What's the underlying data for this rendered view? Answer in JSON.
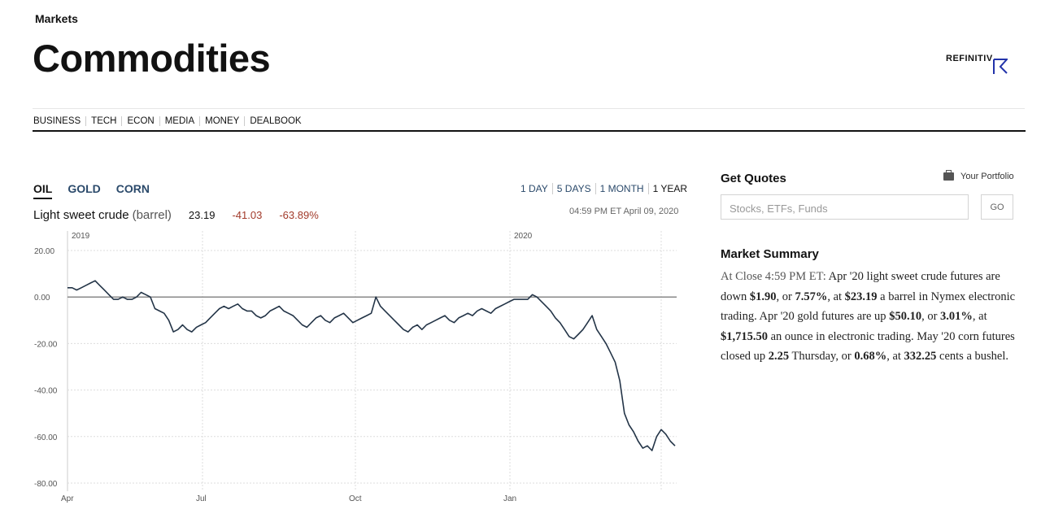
{
  "header": {
    "section": "Markets",
    "title": "Commodities",
    "brand": "REFINITIV"
  },
  "nav": [
    "BUSINESS",
    "TECH",
    "ECON",
    "MEDIA",
    "MONEY",
    "DEALBOOK"
  ],
  "commodity_tabs": [
    {
      "label": "OIL",
      "active": true
    },
    {
      "label": "GOLD",
      "active": false
    },
    {
      "label": "CORN",
      "active": false
    }
  ],
  "time_ranges": [
    {
      "label": "1 DAY",
      "active": false
    },
    {
      "label": "5 DAYS",
      "active": false
    },
    {
      "label": "1 MONTH",
      "active": false
    },
    {
      "label": "1 YEAR",
      "active": true
    }
  ],
  "quote": {
    "name": "Light sweet crude",
    "unit": "(barrel)",
    "price": "23.19",
    "change": "-41.03",
    "change_pct": "-63.89%",
    "timestamp": "04:59 PM ET April 09, 2020"
  },
  "chart_data": {
    "type": "line",
    "year_labels": [
      "2019",
      "2020"
    ],
    "x_ticks": [
      "Apr",
      "Jul",
      "Oct",
      "Jan"
    ],
    "y_ticks": [
      "20.00",
      "0.00",
      "-20.00",
      "-40.00",
      "-60.00",
      "-80.00"
    ],
    "ylim": [
      -80,
      20
    ],
    "baseline": 0,
    "series": [
      {
        "values": [
          4,
          4,
          3,
          4,
          5,
          6,
          7,
          5,
          3,
          1,
          -1,
          -1,
          0,
          -1,
          -1,
          0,
          2,
          1,
          0,
          -5,
          -6,
          -7,
          -10,
          -15,
          -14,
          -12,
          -14,
          -15,
          -13,
          -12,
          -11,
          -9,
          -7,
          -5,
          -4,
          -5,
          -4,
          -3,
          -5,
          -6,
          -6,
          -8,
          -9,
          -8,
          -6,
          -5,
          -4,
          -6,
          -7,
          -8,
          -10,
          -12,
          -13,
          -11,
          -9,
          -8,
          -10,
          -11,
          -9,
          -8,
          -7,
          -9,
          -11,
          -10,
          -9,
          -8,
          -7,
          0,
          -4,
          -6,
          -8,
          -10,
          -12,
          -14,
          -15,
          -13,
          -12,
          -14,
          -12,
          -11,
          -10,
          -9,
          -8,
          -10,
          -11,
          -9,
          -8,
          -7,
          -8,
          -6,
          -5,
          -6,
          -7,
          -5,
          -4,
          -3,
          -2,
          -1,
          -1,
          -1,
          -1,
          1,
          0,
          -2,
          -4,
          -6,
          -9,
          -11,
          -14,
          -17,
          -18,
          -16,
          -14,
          -11,
          -8,
          -14,
          -17,
          -20,
          -24,
          -28,
          -36,
          -50,
          -55,
          -58,
          -62,
          -65,
          -64,
          -66,
          -60,
          -57,
          -59,
          -62,
          -64
        ]
      }
    ]
  },
  "get_quotes": {
    "title": "Get Quotes",
    "portfolio": "Your Portfolio",
    "placeholder": "Stocks, ETFs, Funds",
    "go": "GO"
  },
  "market_summary": {
    "title": "Market Summary",
    "lead": "At Close 4:59 PM ET:",
    "p1": " Apr '20 light sweet crude futures are down ",
    "v1": "$1.90",
    "p2": ", or ",
    "v2": "7.57%",
    "p3": ", at ",
    "v3": "$23.19",
    "p4": " a barrel in Nymex electronic trading. Apr '20 gold futures are up ",
    "v4": "$50.10",
    "p5": ", or ",
    "v5": "3.01%",
    "p6": ", at ",
    "v6": "$1,715.50",
    "p7": " an ounce in electronic trading. May '20 corn futures closed up ",
    "v7": "2.25",
    "p8": " Thursday, or ",
    "v8": "0.68%",
    "p9": ", at ",
    "v9": "332.25",
    "p10": " cents a bushel."
  }
}
